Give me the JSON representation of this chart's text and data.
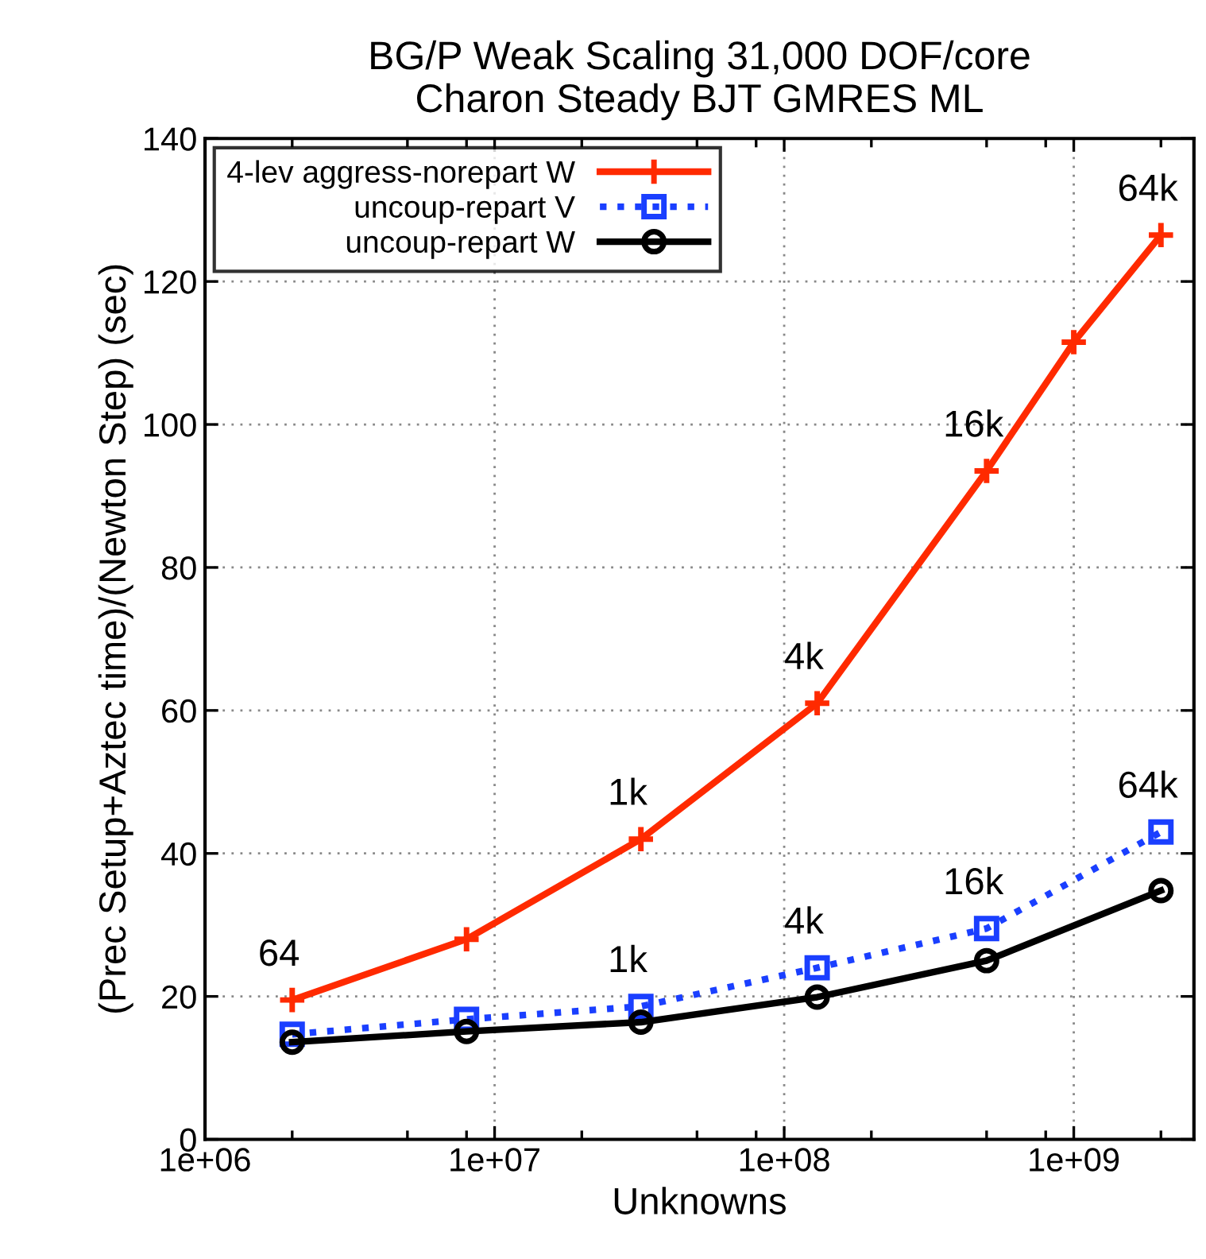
{
  "chart_data": {
    "type": "line",
    "title": "BG/P Weak Scaling 31,000 DOF/core\nCharon Steady BJT GMRES ML",
    "xlabel": "Unknowns",
    "ylabel": "(Prec Setup+Aztec time)/(Newton Step) (sec)",
    "log": "x",
    "grid": true,
    "legend": "top left",
    "xlim": [
      1000000,
      2600000000
    ],
    "ylim": [
      0,
      140
    ],
    "xticks": [
      {
        "value": 1000000,
        "label": "1e+06"
      },
      {
        "value": 2000000,
        "label": null
      },
      {
        "value": 5000000,
        "label": null
      },
      {
        "value": 8000000,
        "label": null
      },
      {
        "value": 10000000,
        "label": "1e+07"
      },
      {
        "value": 20000000,
        "label": null
      },
      {
        "value": 50000000,
        "label": null
      },
      {
        "value": 80000000,
        "label": null
      },
      {
        "value": 100000000,
        "label": "1e+08"
      },
      {
        "value": 200000000,
        "label": null
      },
      {
        "value": 500000000,
        "label": null
      },
      {
        "value": 800000000,
        "label": null
      },
      {
        "value": 1000000000,
        "label": "1e+09"
      },
      {
        "value": 2000000000,
        "label": null
      }
    ],
    "yticks": [
      0,
      20,
      40,
      60,
      80,
      100,
      120,
      140
    ],
    "series": [
      {
        "name": "4-lev aggress-norepart W",
        "color": "#ff2a00",
        "marker": "cross",
        "line_style": "solid",
        "x": [
          2000000,
          8000000,
          32000000,
          130000000,
          500000000,
          1000000000,
          2000000000
        ],
        "values": [
          19.5,
          28,
          42,
          61,
          93.5,
          111.5,
          126.5
        ]
      },
      {
        "name": "uncoup-repart V",
        "color": "#1a3fff",
        "marker": "square",
        "line_style": "dotted",
        "x": [
          2000000,
          8000000,
          32000000,
          130000000,
          500000000,
          2000000000
        ],
        "values": [
          14.7,
          16.8,
          18.6,
          24,
          29.5,
          43
        ]
      },
      {
        "name": "uncoup-repart W",
        "color": "#000000",
        "marker": "circle",
        "line_style": "solid",
        "x": [
          2000000,
          8000000,
          32000000,
          130000000,
          500000000,
          2000000000
        ],
        "values": [
          13.6,
          15.1,
          16.4,
          19.9,
          25,
          34.8
        ]
      }
    ],
    "annotations": [
      {
        "text": "64",
        "x": 2000000,
        "y": 19.5
      },
      {
        "text": "1k",
        "x": 32000000,
        "y": 42
      },
      {
        "text": "4k",
        "x": 130000000,
        "y": 61
      },
      {
        "text": "16k",
        "x": 500000000,
        "y": 93.5
      },
      {
        "text": "64k",
        "x": 2000000000,
        "y": 126.5
      },
      {
        "text": "1k",
        "x": 32000000,
        "y": 18.6
      },
      {
        "text": "4k",
        "x": 130000000,
        "y": 24
      },
      {
        "text": "16k",
        "x": 500000000,
        "y": 29.5
      },
      {
        "text": "64k",
        "x": 2000000000,
        "y": 43
      }
    ]
  }
}
